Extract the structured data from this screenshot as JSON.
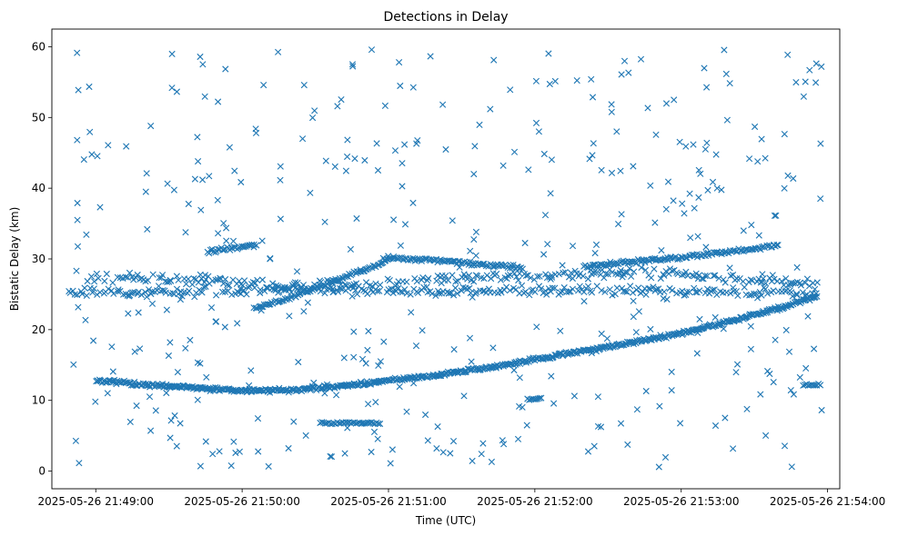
{
  "chart_data": {
    "type": "scatter",
    "title": "Detections in Delay",
    "xlabel": "Time (UTC)",
    "ylabel": "Bistatic Delay (km)",
    "marker": "x",
    "color": "#1f77b4",
    "xlim_seconds_after_21_48_00": [
      42,
      365
    ],
    "ylim": [
      -2.5,
      62.5
    ],
    "xticks": [
      {
        "t": 60,
        "label": "2025-05-26 21:49:00"
      },
      {
        "t": 120,
        "label": "2025-05-26 21:50:00"
      },
      {
        "t": 180,
        "label": "2025-05-26 21:51:00"
      },
      {
        "t": 240,
        "label": "2025-05-26 21:52:00"
      },
      {
        "t": 300,
        "label": "2025-05-26 21:53:00"
      },
      {
        "t": 360,
        "label": "2025-05-26 21:54:00"
      }
    ],
    "yticks": [
      0,
      10,
      20,
      30,
      40,
      50,
      60
    ],
    "time_range_seconds": [
      49,
      358
    ],
    "tracks": [
      {
        "name": "curved track",
        "points": [
          [
            60,
            12.8
          ],
          [
            80,
            12.2
          ],
          [
            100,
            11.8
          ],
          [
            120,
            11.4
          ],
          [
            140,
            11.4
          ],
          [
            160,
            12.0
          ],
          [
            180,
            12.8
          ],
          [
            200,
            13.6
          ],
          [
            220,
            14.6
          ],
          [
            240,
            15.8
          ],
          [
            260,
            17.0
          ],
          [
            280,
            18.2
          ],
          [
            300,
            19.5
          ],
          [
            320,
            21.2
          ],
          [
            340,
            23.0
          ],
          [
            356,
            24.8
          ]
        ]
      },
      {
        "name": "band near 25 km",
        "points": [
          [
            49,
            25.2
          ],
          [
            100,
            25.3
          ],
          [
            150,
            25.6
          ],
          [
            200,
            25.5
          ],
          [
            250,
            25.7
          ],
          [
            300,
            25.4
          ],
          [
            356,
            25.1
          ]
        ]
      },
      {
        "name": "band near 27 km",
        "points": [
          [
            58,
            27.4
          ],
          [
            100,
            27.0
          ],
          [
            140,
            26.2
          ],
          [
            170,
            26.4
          ],
          [
            200,
            27.2
          ],
          [
            240,
            27.6
          ],
          [
            270,
            28.0
          ],
          [
            300,
            27.8
          ],
          [
            330,
            27.0
          ],
          [
            356,
            26.4
          ]
        ]
      },
      {
        "name": "segment near 31 km",
        "points": [
          [
            106,
            31.0
          ],
          [
            116,
            31.5
          ],
          [
            126,
            32.0
          ]
        ]
      },
      {
        "name": "rising segment",
        "points": [
          [
            125,
            23.0
          ],
          [
            140,
            24.5
          ],
          [
            155,
            26.5
          ],
          [
            170,
            28.5
          ],
          [
            180,
            29.8
          ]
        ]
      },
      {
        "name": "descending segment",
        "points": [
          [
            178,
            30.2
          ],
          [
            200,
            29.8
          ],
          [
            220,
            29.2
          ],
          [
            235,
            28.8
          ]
        ]
      },
      {
        "name": "rising segment 2",
        "points": [
          [
            260,
            28.9
          ],
          [
            280,
            29.6
          ],
          [
            300,
            30.2
          ],
          [
            320,
            31.0
          ],
          [
            340,
            32.0
          ]
        ]
      }
    ],
    "clusters": [
      {
        "name": "cluster near 7 km",
        "t_range": [
          152,
          177
        ],
        "y": 6.8
      },
      {
        "name": "cluster near 10 km",
        "t_range": [
          237,
          243
        ],
        "y": 10.2
      },
      {
        "name": "cluster near 12 km",
        "t_range": [
          350,
          357
        ],
        "y": 12.2
      }
    ],
    "noise": {
      "y_range": [
        0.5,
        59.8
      ],
      "approx_count": 420
    }
  }
}
